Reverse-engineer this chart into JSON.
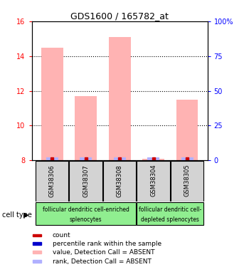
{
  "title": "GDS1600 / 165782_at",
  "samples": [
    "GSM38306",
    "GSM38307",
    "GSM38308",
    "GSM38304",
    "GSM38305"
  ],
  "values": [
    14.5,
    11.7,
    15.1,
    8.1,
    11.5
  ],
  "ylim_left": [
    8,
    16
  ],
  "ylim_right": [
    0,
    100
  ],
  "yticks_left": [
    8,
    10,
    12,
    14,
    16
  ],
  "yticks_right": [
    0,
    25,
    50,
    75,
    100
  ],
  "bar_color_absent": "#ffb3b3",
  "rank_color_absent": "#b0b0ff",
  "count_color": "#cc0000",
  "rank_dot_color": "#0000cc",
  "group1_label1": "follicular dendritic cell-enriched",
  "group1_label2": "splenocytes",
  "group1_samples": [
    0,
    1,
    2
  ],
  "group2_label1": "follicular dendritic cell-",
  "group2_label2": "depleted splenocytes",
  "group2_samples": [
    3,
    4
  ],
  "group_color": "#90ee90",
  "cell_type_label": "cell type",
  "legend_items": [
    {
      "color": "#cc0000",
      "label": "count"
    },
    {
      "color": "#0000cc",
      "label": "percentile rank within the sample"
    },
    {
      "color": "#ffb3b3",
      "label": "value, Detection Call = ABSENT"
    },
    {
      "color": "#b0b0ff",
      "label": "rank, Detection Call = ABSENT"
    }
  ],
  "bar_width": 0.65,
  "detection_calls": [
    "ABSENT",
    "ABSENT",
    "ABSENT",
    "ABSENT",
    "ABSENT"
  ],
  "sample_bg_color": "#d3d3d3",
  "rank_values": [
    1,
    1,
    1,
    1,
    1
  ]
}
